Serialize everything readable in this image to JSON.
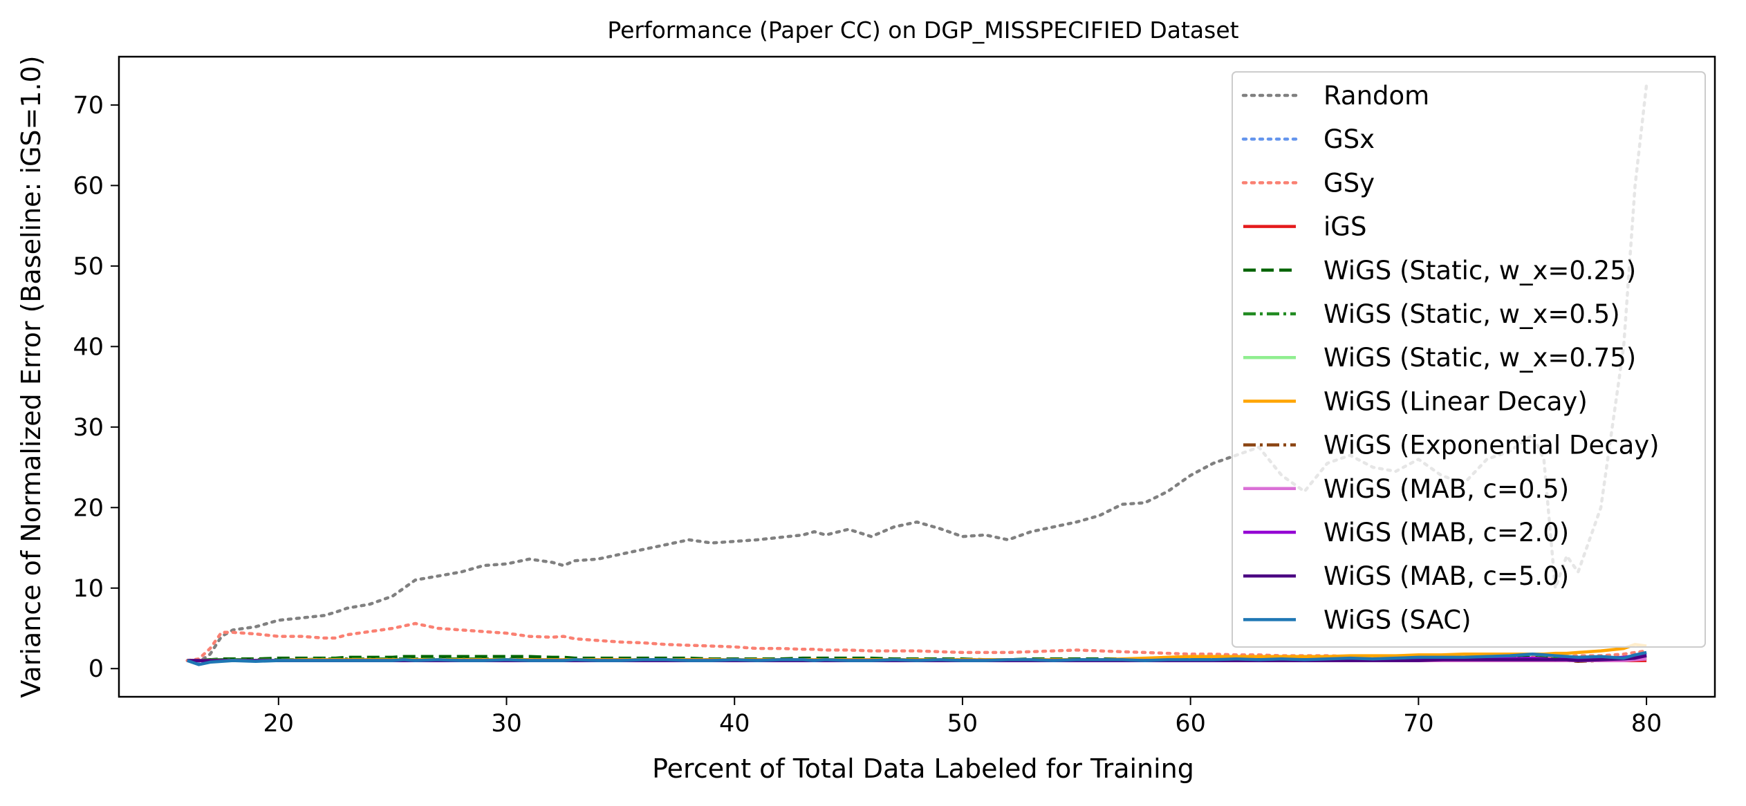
{
  "chart_data": {
    "type": "line",
    "title": "Performance (Paper CC) on DGP_MISSPECIFIED Dataset",
    "xlabel": "Percent of Total Data Labeled for Training",
    "ylabel": "Variance of Normalized Error (Baseline: iGS=1.0)",
    "xlim": [
      13,
      83
    ],
    "ylim": [
      -3.5,
      76
    ],
    "xticks": [
      20,
      30,
      40,
      50,
      60,
      70,
      80
    ],
    "yticks": [
      0,
      10,
      20,
      30,
      40,
      50,
      60,
      70
    ],
    "grid": false,
    "legend_position": "top-right",
    "x": [
      16,
      16.5,
      17,
      17.5,
      18,
      19,
      20,
      21,
      22,
      22.5,
      23,
      24,
      25,
      25.5,
      26,
      27,
      28,
      29,
      30,
      31,
      32,
      32.5,
      33,
      34,
      35,
      36,
      37,
      38,
      39,
      40,
      41,
      42,
      43,
      43.5,
      44,
      45,
      46,
      47,
      48,
      49,
      50,
      51,
      52,
      53,
      54,
      55,
      56,
      57,
      58,
      59,
      60,
      61,
      62,
      63,
      64,
      65,
      66,
      67,
      68,
      69,
      70,
      71,
      72,
      73,
      74,
      75,
      75.5,
      76,
      76.5,
      77,
      78,
      79,
      79.5,
      80
    ],
    "series": [
      {
        "name": "Random",
        "color": "#808080",
        "dash": "dotted",
        "values": [
          1.0,
          0.8,
          1.8,
          4.0,
          4.8,
          5.2,
          6.0,
          6.3,
          6.6,
          7.0,
          7.5,
          8.0,
          9.0,
          10.0,
          11.0,
          11.5,
          12.0,
          12.8,
          13.0,
          13.6,
          13.2,
          12.8,
          13.4,
          13.6,
          14.2,
          14.8,
          15.4,
          16.0,
          15.6,
          15.8,
          16.0,
          16.3,
          16.6,
          17.0,
          16.6,
          17.3,
          16.4,
          17.6,
          18.2,
          17.4,
          16.4,
          16.6,
          16.0,
          17.0,
          17.6,
          18.2,
          19.0,
          20.4,
          20.6,
          22.0,
          24.0,
          25.5,
          26.5,
          27.5,
          24.0,
          22.0,
          25.5,
          26.5,
          25.0,
          24.5,
          26.0,
          24.0,
          23.0,
          26.0,
          27.0,
          29.0,
          26.0,
          10.0,
          14.0,
          12.0,
          20.0,
          40.0,
          60.0,
          72.5
        ]
      },
      {
        "name": "GSx",
        "color": "#6495ed",
        "dash": "dotted",
        "values": [
          1.0,
          0.9,
          1.0,
          1.1,
          1.1,
          1.0,
          1.0,
          1.1,
          1.1,
          1.1,
          1.0,
          1.0,
          1.1,
          1.1,
          1.1,
          1.0,
          1.0,
          1.1,
          1.1,
          1.0,
          1.0,
          1.0,
          1.0,
          1.1,
          1.1,
          1.0,
          1.0,
          1.0,
          1.1,
          1.1,
          1.0,
          1.0,
          1.1,
          1.1,
          1.0,
          1.0,
          1.1,
          1.0,
          1.0,
          1.0,
          1.0,
          1.0,
          1.1,
          1.1,
          1.0,
          1.1,
          1.1,
          1.1,
          1.0,
          1.0,
          1.1,
          1.1,
          1.1,
          1.0,
          1.1,
          1.0,
          1.0,
          1.1,
          1.1,
          1.1,
          1.1,
          1.2,
          1.2,
          1.2,
          1.2,
          1.2,
          1.2,
          1.2,
          1.1,
          1.2,
          1.3,
          1.3,
          1.4,
          1.5
        ]
      },
      {
        "name": "GSy",
        "color": "#fa8072",
        "dash": "dotted",
        "values": [
          1.0,
          1.2,
          2.5,
          4.5,
          4.5,
          4.3,
          4.0,
          4.0,
          3.8,
          3.8,
          4.2,
          4.6,
          5.0,
          5.3,
          5.6,
          5.0,
          4.8,
          4.6,
          4.4,
          4.0,
          3.9,
          4.0,
          3.7,
          3.5,
          3.3,
          3.2,
          3.0,
          2.9,
          2.8,
          2.7,
          2.5,
          2.5,
          2.4,
          2.4,
          2.3,
          2.3,
          2.2,
          2.2,
          2.2,
          2.1,
          2.0,
          2.0,
          2.0,
          2.1,
          2.2,
          2.3,
          2.2,
          2.1,
          2.0,
          1.9,
          1.8,
          1.8,
          1.7,
          1.7,
          1.6,
          1.6,
          1.6,
          1.5,
          1.5,
          1.5,
          1.5,
          1.4,
          1.4,
          1.4,
          1.4,
          1.4,
          1.4,
          1.5,
          1.5,
          1.6,
          1.6,
          1.8,
          2.0,
          2.2
        ]
      },
      {
        "name": "iGS",
        "color": "#e41a1c",
        "dash": "solid",
        "values": [
          1.0,
          1.0,
          1.0,
          1.0,
          1.0,
          1.0,
          1.0,
          1.0,
          1.0,
          1.0,
          1.0,
          1.0,
          1.0,
          1.0,
          1.0,
          1.0,
          1.0,
          1.0,
          1.0,
          1.0,
          1.0,
          1.0,
          1.0,
          1.0,
          1.0,
          1.0,
          1.0,
          1.0,
          1.0,
          1.0,
          1.0,
          1.0,
          1.0,
          1.0,
          1.0,
          1.0,
          1.0,
          1.0,
          1.0,
          1.0,
          1.0,
          1.0,
          1.0,
          1.0,
          1.0,
          1.0,
          1.0,
          1.0,
          1.0,
          1.0,
          1.0,
          1.0,
          1.0,
          1.0,
          1.0,
          1.0,
          1.0,
          1.0,
          1.0,
          1.0,
          1.0,
          1.0,
          1.0,
          1.0,
          1.0,
          1.0,
          1.0,
          1.0,
          1.0,
          1.0,
          1.0,
          1.0,
          1.0,
          1.0
        ]
      },
      {
        "name": "WiGS (Static, w_x=0.25)",
        "color": "#006400",
        "dash": "dashed",
        "values": [
          1.0,
          1.0,
          1.1,
          1.2,
          1.2,
          1.2,
          1.3,
          1.3,
          1.3,
          1.3,
          1.4,
          1.4,
          1.4,
          1.5,
          1.5,
          1.5,
          1.5,
          1.5,
          1.5,
          1.5,
          1.4,
          1.4,
          1.3,
          1.3,
          1.3,
          1.3,
          1.3,
          1.3,
          1.2,
          1.2,
          1.2,
          1.2,
          1.3,
          1.3,
          1.3,
          1.3,
          1.3,
          1.2,
          1.2,
          1.2,
          1.2,
          1.1,
          1.1,
          1.2,
          1.2,
          1.2,
          1.2,
          1.2,
          1.2,
          1.1,
          1.1,
          1.1,
          1.2,
          1.2,
          1.1,
          1.1,
          1.2,
          1.2,
          1.2,
          1.2,
          1.2,
          1.2,
          1.3,
          1.3,
          1.3,
          1.4,
          1.3,
          1.3,
          1.2,
          1.3,
          1.3,
          1.4,
          1.5,
          1.6
        ]
      },
      {
        "name": "WiGS (Static, w_x=0.5)",
        "color": "#228b22",
        "dash": "dashdot",
        "values": [
          1.0,
          1.0,
          1.1,
          1.1,
          1.1,
          1.1,
          1.1,
          1.1,
          1.2,
          1.2,
          1.2,
          1.2,
          1.2,
          1.2,
          1.2,
          1.2,
          1.2,
          1.2,
          1.2,
          1.1,
          1.1,
          1.1,
          1.1,
          1.1,
          1.1,
          1.1,
          1.1,
          1.1,
          1.1,
          1.1,
          1.1,
          1.1,
          1.1,
          1.1,
          1.1,
          1.1,
          1.1,
          1.1,
          1.1,
          1.1,
          1.1,
          1.1,
          1.1,
          1.1,
          1.1,
          1.1,
          1.1,
          1.1,
          1.1,
          1.1,
          1.1,
          1.1,
          1.1,
          1.1,
          1.1,
          1.1,
          1.1,
          1.2,
          1.2,
          1.2,
          1.2,
          1.2,
          1.2,
          1.2,
          1.3,
          1.3,
          1.2,
          1.2,
          1.2,
          1.2,
          1.3,
          1.4,
          1.4,
          1.5
        ]
      },
      {
        "name": "WiGS (Static, w_x=0.75)",
        "color": "#90ee90",
        "dash": "solid",
        "values": [
          1.0,
          1.0,
          1.0,
          1.0,
          1.0,
          1.0,
          1.0,
          1.0,
          1.0,
          1.0,
          1.0,
          1.0,
          1.0,
          1.0,
          1.0,
          1.0,
          1.0,
          1.0,
          1.0,
          1.0,
          1.0,
          1.0,
          1.0,
          1.0,
          1.0,
          1.0,
          1.0,
          1.0,
          1.0,
          1.0,
          1.0,
          1.0,
          1.0,
          1.0,
          1.0,
          1.0,
          1.0,
          1.0,
          1.0,
          1.0,
          1.0,
          1.0,
          1.0,
          1.0,
          1.0,
          1.0,
          1.0,
          1.0,
          1.0,
          1.0,
          1.0,
          1.0,
          1.0,
          1.0,
          1.0,
          1.0,
          1.0,
          1.0,
          1.0,
          1.0,
          1.1,
          1.1,
          1.1,
          1.1,
          1.1,
          1.1,
          1.1,
          1.1,
          1.1,
          1.1,
          1.1,
          1.2,
          1.2,
          1.3
        ]
      },
      {
        "name": "WiGS (Linear Decay)",
        "color": "#ffa500",
        "dash": "solid",
        "values": [
          1.0,
          1.0,
          1.0,
          1.0,
          1.0,
          1.0,
          1.0,
          1.1,
          1.1,
          1.1,
          1.1,
          1.1,
          1.1,
          1.1,
          1.1,
          1.1,
          1.1,
          1.1,
          1.1,
          1.1,
          1.1,
          1.1,
          1.1,
          1.1,
          1.1,
          1.1,
          1.1,
          1.1,
          1.1,
          1.1,
          1.1,
          1.1,
          1.1,
          1.1,
          1.1,
          1.1,
          1.1,
          1.1,
          1.1,
          1.1,
          1.1,
          1.1,
          1.1,
          1.1,
          1.1,
          1.1,
          1.1,
          1.2,
          1.3,
          1.4,
          1.5,
          1.5,
          1.5,
          1.5,
          1.5,
          1.5,
          1.5,
          1.6,
          1.6,
          1.6,
          1.7,
          1.7,
          1.8,
          1.8,
          1.8,
          1.8,
          1.8,
          1.9,
          1.9,
          2.0,
          2.2,
          2.5,
          3.0,
          2.8
        ]
      },
      {
        "name": "WiGS (Exponential Decay)",
        "color": "#8b4513",
        "dash": "dashdot",
        "values": [
          1.0,
          1.0,
          1.0,
          1.0,
          1.0,
          1.0,
          1.0,
          1.0,
          1.0,
          1.0,
          1.0,
          1.0,
          1.0,
          1.0,
          1.0,
          1.0,
          1.0,
          1.0,
          1.0,
          1.0,
          1.0,
          1.0,
          1.0,
          1.0,
          1.0,
          1.0,
          1.0,
          1.0,
          1.0,
          1.0,
          1.0,
          1.0,
          1.0,
          1.0,
          1.0,
          1.0,
          1.0,
          1.0,
          1.0,
          1.0,
          1.0,
          1.0,
          1.0,
          1.0,
          1.0,
          1.0,
          1.0,
          1.0,
          1.0,
          1.0,
          1.0,
          1.0,
          1.0,
          1.0,
          1.0,
          1.0,
          1.0,
          1.0,
          1.0,
          1.0,
          1.1,
          1.1,
          1.1,
          1.1,
          1.2,
          1.2,
          1.2,
          1.1,
          1.0,
          0.9,
          1.0,
          1.1,
          1.2,
          1.3
        ]
      },
      {
        "name": "WiGS (MAB, c=0.5)",
        "color": "#da70d6",
        "dash": "solid",
        "values": [
          1.0,
          1.0,
          1.0,
          1.0,
          1.0,
          1.0,
          1.0,
          1.0,
          1.0,
          1.0,
          1.0,
          1.0,
          1.0,
          1.0,
          1.0,
          1.0,
          1.0,
          1.0,
          1.0,
          1.0,
          1.0,
          1.0,
          1.0,
          1.0,
          1.0,
          1.0,
          1.0,
          1.0,
          1.0,
          1.0,
          1.0,
          1.0,
          1.0,
          1.0,
          1.0,
          1.0,
          1.0,
          1.0,
          1.0,
          1.0,
          1.0,
          1.0,
          1.0,
          1.0,
          1.0,
          1.0,
          1.0,
          1.0,
          1.0,
          1.0,
          1.0,
          1.0,
          1.0,
          1.0,
          1.0,
          1.0,
          1.0,
          1.0,
          1.0,
          1.0,
          1.0,
          1.0,
          1.0,
          1.0,
          1.0,
          1.0,
          1.0,
          1.0,
          1.0,
          1.0,
          1.0,
          1.0,
          1.1,
          1.2
        ]
      },
      {
        "name": "WiGS (MAB, c=2.0)",
        "color": "#9400d3",
        "dash": "solid",
        "values": [
          1.0,
          1.0,
          0.9,
          1.0,
          1.0,
          1.0,
          1.0,
          1.0,
          1.0,
          1.0,
          1.0,
          1.0,
          1.0,
          1.0,
          1.0,
          1.0,
          1.0,
          1.0,
          1.0,
          1.0,
          1.0,
          1.0,
          1.0,
          1.0,
          1.0,
          1.0,
          1.0,
          1.0,
          1.0,
          1.0,
          1.0,
          1.0,
          1.0,
          1.0,
          1.0,
          1.0,
          1.0,
          1.0,
          1.0,
          1.0,
          1.0,
          1.0,
          1.0,
          1.0,
          1.0,
          1.0,
          1.0,
          1.0,
          1.0,
          1.0,
          1.0,
          1.0,
          1.0,
          1.0,
          1.0,
          1.0,
          1.0,
          1.1,
          1.1,
          1.1,
          1.1,
          1.1,
          1.2,
          1.2,
          1.2,
          1.3,
          1.2,
          1.1,
          1.2,
          1.3,
          1.3,
          1.4,
          1.6,
          1.8
        ]
      },
      {
        "name": "WiGS (MAB, c=5.0)",
        "color": "#4b0082",
        "dash": "solid",
        "values": [
          1.0,
          1.0,
          1.0,
          1.0,
          1.0,
          1.0,
          1.0,
          1.0,
          1.0,
          1.0,
          1.0,
          1.0,
          1.0,
          1.0,
          1.0,
          1.0,
          1.0,
          1.0,
          1.0,
          1.0,
          1.0,
          1.0,
          1.0,
          1.0,
          1.0,
          1.0,
          1.0,
          1.0,
          1.0,
          1.0,
          1.0,
          1.0,
          1.0,
          1.0,
          1.0,
          1.0,
          1.0,
          1.0,
          1.0,
          1.0,
          1.0,
          1.0,
          1.0,
          1.0,
          1.0,
          1.0,
          1.0,
          1.0,
          1.0,
          1.0,
          1.0,
          1.0,
          1.0,
          1.0,
          1.0,
          1.0,
          1.0,
          1.0,
          1.0,
          1.0,
          1.0,
          1.1,
          1.1,
          1.1,
          1.1,
          1.1,
          1.1,
          1.1,
          1.1,
          1.0,
          1.1,
          1.2,
          1.3,
          1.6
        ]
      },
      {
        "name": "WiGS (SAC)",
        "color": "#1f77b4",
        "dash": "solid",
        "values": [
          1.0,
          0.5,
          0.8,
          0.9,
          1.0,
          0.9,
          1.0,
          1.0,
          1.0,
          1.0,
          1.0,
          1.0,
          1.0,
          1.1,
          1.0,
          1.1,
          1.0,
          1.0,
          1.1,
          1.0,
          1.0,
          1.0,
          1.1,
          1.0,
          1.0,
          1.1,
          1.1,
          1.0,
          1.0,
          1.1,
          1.0,
          1.1,
          1.1,
          1.0,
          1.1,
          1.0,
          1.0,
          1.1,
          1.0,
          1.1,
          1.0,
          1.0,
          1.1,
          1.1,
          1.0,
          1.1,
          1.1,
          1.1,
          1.0,
          1.1,
          1.1,
          1.1,
          1.2,
          1.1,
          1.2,
          1.1,
          1.2,
          1.3,
          1.2,
          1.3,
          1.4,
          1.4,
          1.4,
          1.5,
          1.6,
          1.8,
          1.7,
          1.6,
          1.5,
          1.4,
          1.5,
          1.3,
          1.7,
          2.0
        ]
      }
    ]
  }
}
